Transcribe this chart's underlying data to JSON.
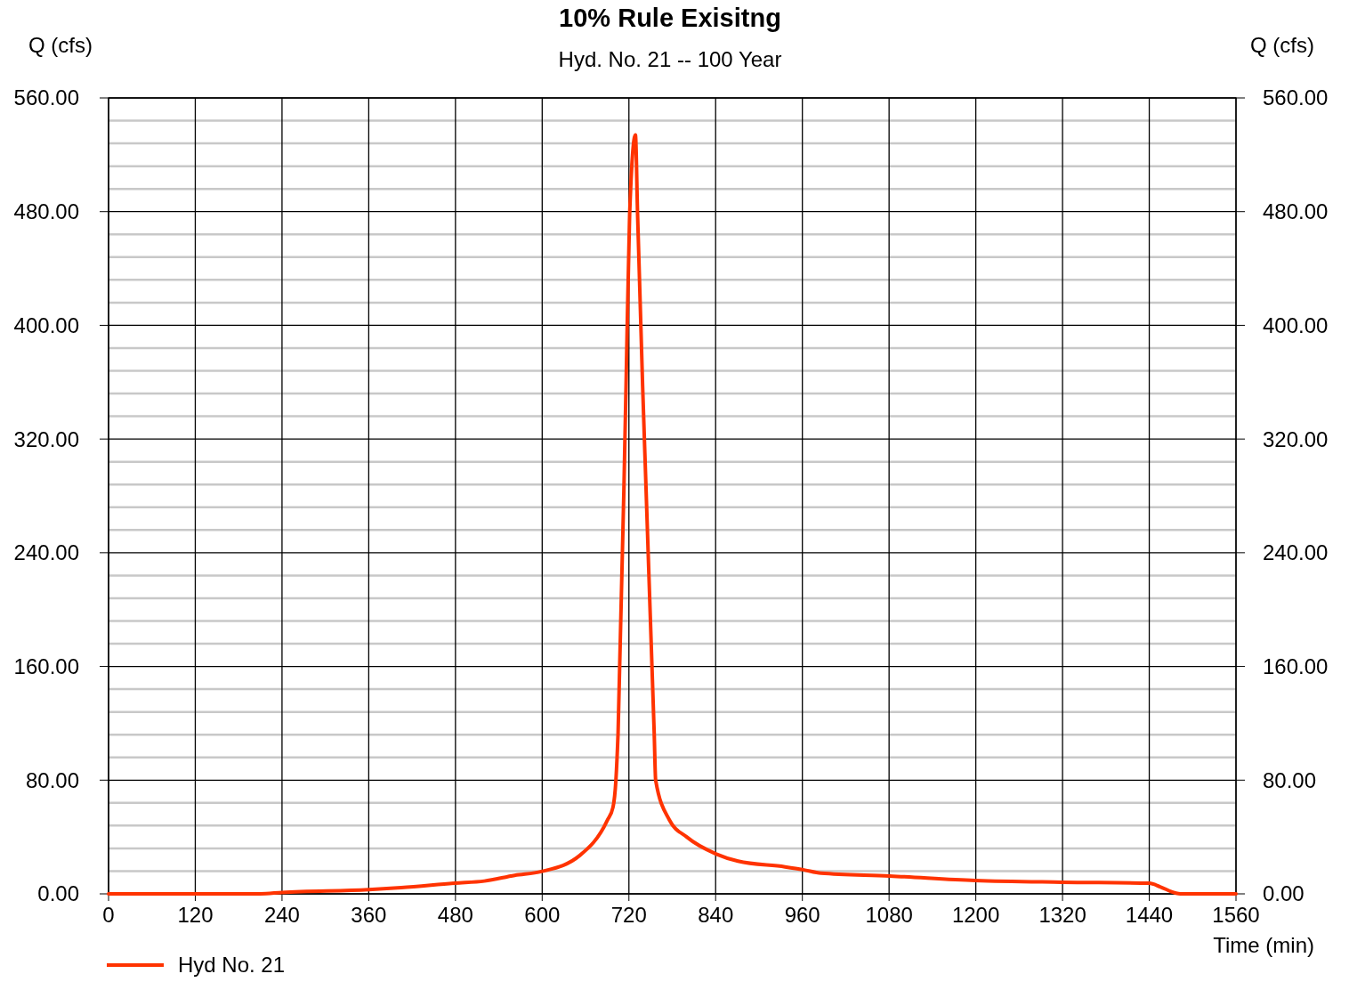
{
  "chart_data": {
    "type": "line",
    "title": "10% Rule Exisitng",
    "subtitle": "Hyd. No. 21 -- 100 Year",
    "xlabel": "Time (min)",
    "ylabel": "Q (cfs)",
    "y2label": "Q (cfs)",
    "x": [
      0,
      210,
      240,
      360,
      405,
      479,
      520,
      562,
      599,
      652,
      690,
      698,
      702,
      705,
      716,
      721,
      729,
      732,
      739,
      755,
      757,
      776,
      800,
      841,
      871,
      936,
      961,
      986,
      1081,
      1199,
      1319,
      1440,
      1455,
      1476,
      1483,
      1560
    ],
    "series": [
      {
        "name": "Hyd No. 21",
        "color": "#ff3300",
        "values": [
          0,
          0,
          1,
          3,
          4.4,
          7.5,
          9,
          13,
          15.7,
          27,
          51.6,
          61,
          80,
          113,
          357,
          478,
          534,
          478,
          357,
          113,
          80,
          52,
          40,
          28,
          23,
          19,
          17,
          14.5,
          12.6,
          9.4,
          8.2,
          7.5,
          5,
          0.6,
          0,
          0
        ]
      }
    ],
    "xlim": [
      0,
      1560
    ],
    "xticks": [
      0,
      120,
      240,
      360,
      480,
      600,
      720,
      840,
      960,
      1080,
      1200,
      1320,
      1440,
      1560
    ],
    "ylim": [
      0,
      560
    ],
    "yticks": [
      {
        "value": 0,
        "label": "0.00"
      },
      {
        "value": 16,
        "label": null
      },
      {
        "value": 32,
        "label": null
      },
      {
        "value": 48,
        "label": null
      },
      {
        "value": 64,
        "label": null
      },
      {
        "value": 80,
        "label": "80.00"
      },
      {
        "value": 96,
        "label": null
      },
      {
        "value": 112,
        "label": null
      },
      {
        "value": 128,
        "label": null
      },
      {
        "value": 144,
        "label": null
      },
      {
        "value": 160,
        "label": "160.00"
      },
      {
        "value": 176,
        "label": null
      },
      {
        "value": 192,
        "label": null
      },
      {
        "value": 208,
        "label": null
      },
      {
        "value": 224,
        "label": null
      },
      {
        "value": 240,
        "label": "240.00"
      },
      {
        "value": 256,
        "label": null
      },
      {
        "value": 272,
        "label": null
      },
      {
        "value": 288,
        "label": null
      },
      {
        "value": 304,
        "label": null
      },
      {
        "value": 320,
        "label": "320.00"
      },
      {
        "value": 336,
        "label": null
      },
      {
        "value": 352,
        "label": null
      },
      {
        "value": 368,
        "label": null
      },
      {
        "value": 384,
        "label": null
      },
      {
        "value": 400,
        "label": "400.00"
      },
      {
        "value": 416,
        "label": null
      },
      {
        "value": 432,
        "label": null
      },
      {
        "value": 448,
        "label": null
      },
      {
        "value": 464,
        "label": null
      },
      {
        "value": 480,
        "label": "480.00"
      },
      {
        "value": 496,
        "label": null
      },
      {
        "value": 512,
        "label": null
      },
      {
        "value": 528,
        "label": null
      },
      {
        "value": 544,
        "label": null
      },
      {
        "value": 560,
        "label": "560.00"
      }
    ],
    "y2lim": [
      0,
      560
    ],
    "y2ticks": [
      {
        "value": 0,
        "label": "0.00"
      },
      {
        "value": 80,
        "label": "80.00"
      },
      {
        "value": 160,
        "label": "160.00"
      },
      {
        "value": 240,
        "label": "240.00"
      },
      {
        "value": 320,
        "label": "320.00"
      },
      {
        "value": 400,
        "label": "400.00"
      },
      {
        "value": 480,
        "label": "480.00"
      },
      {
        "value": 560,
        "label": "560.00"
      }
    ],
    "grid": true,
    "legend": "bottom left",
    "marker": "none",
    "line_style": "solid"
  }
}
